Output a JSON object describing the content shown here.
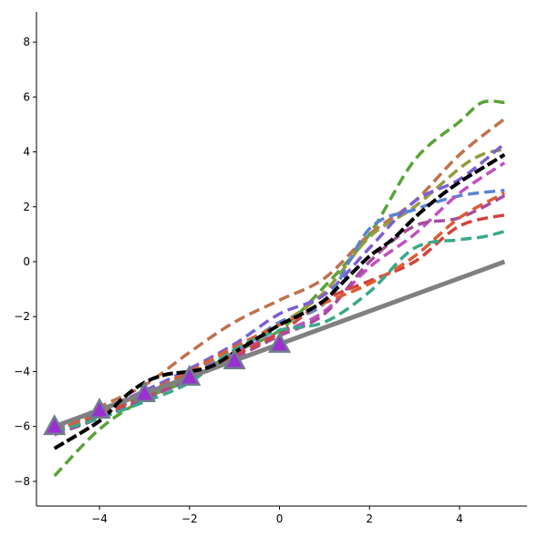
{
  "chart_data": {
    "type": "line",
    "title": "",
    "xlabel": "",
    "ylabel": "",
    "xlim": [
      -5.4,
      5.5
    ],
    "ylim": [
      -8.9,
      9.1
    ],
    "grid": false,
    "legend": "none",
    "x_ticks": [
      {
        "value": -4,
        "label": "−4"
      },
      {
        "value": -2,
        "label": "−2"
      },
      {
        "value": 0,
        "label": "0"
      },
      {
        "value": 2,
        "label": "2"
      },
      {
        "value": 4,
        "label": "4"
      }
    ],
    "y_ticks": [
      {
        "value": -8,
        "label": "−8"
      },
      {
        "value": -6,
        "label": "−6"
      },
      {
        "value": -4,
        "label": "−4"
      },
      {
        "value": -2,
        "label": "−2"
      },
      {
        "value": 0,
        "label": "0"
      },
      {
        "value": 2,
        "label": "2"
      },
      {
        "value": 4,
        "label": "4"
      },
      {
        "value": 6,
        "label": "6"
      },
      {
        "value": 8,
        "label": "8"
      }
    ],
    "reference_line": {
      "color": "#808080",
      "x": [
        -5,
        5
      ],
      "y": [
        -6,
        0
      ]
    },
    "observations": {
      "color": "#9b30d0",
      "edge_color": "#6e7f8c",
      "marker": "triangle",
      "x": [
        -5,
        -4,
        -3,
        -2,
        -1,
        0
      ],
      "y": [
        -6.0,
        -5.4,
        -4.8,
        -4.2,
        -3.6,
        -3.0
      ]
    },
    "series": [
      {
        "color": "#5aa33b",
        "x": [
          -5,
          -4,
          -3,
          -2,
          -1,
          0,
          1,
          2,
          3,
          4,
          4.5,
          5
        ],
        "y": [
          -7.8,
          -6.1,
          -5.0,
          -4.3,
          -3.3,
          -2.5,
          -0.9,
          1.0,
          3.7,
          5.1,
          5.8,
          5.8
        ]
      },
      {
        "color": "#c0714f",
        "x": [
          -5,
          -4,
          -3,
          -2,
          -1,
          0,
          1,
          2,
          3,
          4,
          5
        ],
        "y": [
          -6.3,
          -5.3,
          -4.5,
          -3.3,
          -2.2,
          -1.4,
          -0.6,
          1.0,
          2.2,
          3.9,
          5.2
        ]
      },
      {
        "color": "#949c3c",
        "x": [
          -5,
          -4,
          -3,
          -2,
          -1,
          0,
          1,
          2,
          3,
          4,
          4.5,
          5
        ],
        "y": [
          -6.2,
          -5.5,
          -4.8,
          -4.0,
          -3.2,
          -2.3,
          -1.1,
          0.9,
          2.0,
          3.4,
          3.9,
          4.1
        ]
      },
      {
        "color": "#7b5fd5",
        "x": [
          -5,
          -4,
          -3,
          -2,
          -1,
          0,
          1,
          2,
          3,
          4,
          5
        ],
        "y": [
          -6.1,
          -5.4,
          -4.7,
          -3.9,
          -3.0,
          -1.9,
          -1.2,
          0.5,
          2.2,
          3.0,
          4.3
        ]
      },
      {
        "color": "#000000",
        "x": [
          -5,
          -4,
          -3.5,
          -3,
          -2.5,
          -2,
          -1.5,
          -1,
          -0.5,
          0,
          0.5,
          1,
          1.5,
          2,
          2.5,
          3,
          3.5,
          4,
          4.5,
          5
        ],
        "y": [
          -6.8,
          -5.8,
          -5.0,
          -4.4,
          -4.1,
          -4.0,
          -3.8,
          -3.3,
          -2.8,
          -2.3,
          -1.9,
          -1.4,
          -0.6,
          0.2,
          0.8,
          1.6,
          2.3,
          2.9,
          3.4,
          3.9
        ]
      },
      {
        "color": "#5b84d0",
        "x": [
          -5,
          -4,
          -3,
          -2,
          -1,
          0,
          1,
          2,
          3,
          4,
          5
        ],
        "y": [
          -6.1,
          -5.5,
          -4.9,
          -4.1,
          -3.3,
          -2.2,
          -1.5,
          1.2,
          1.9,
          2.4,
          2.6
        ]
      },
      {
        "color": "#c24fc0",
        "x": [
          -5,
          -4,
          -3,
          -2,
          -1,
          0,
          1,
          2,
          3,
          4,
          5
        ],
        "y": [
          -6.2,
          -5.6,
          -4.9,
          -4.2,
          -3.3,
          -2.6,
          -1.8,
          -0.2,
          1.0,
          2.5,
          3.6
        ]
      },
      {
        "color": "#a64ca0",
        "x": [
          -5,
          -4,
          -3,
          -2,
          -1,
          0,
          1,
          2,
          3,
          4,
          5
        ],
        "y": [
          -6.3,
          -5.7,
          -5.0,
          -4.3,
          -3.5,
          -2.7,
          -1.9,
          0.0,
          1.3,
          1.6,
          2.4
        ]
      },
      {
        "color": "#d0433d",
        "x": [
          -5,
          -4,
          -3,
          -2,
          -1,
          0,
          1,
          2,
          3,
          4,
          5
        ],
        "y": [
          -6.2,
          -5.6,
          -4.9,
          -4.2,
          -3.4,
          -2.6,
          -1.4,
          -0.7,
          0.0,
          1.3,
          1.7
        ]
      },
      {
        "color": "#db5c33",
        "x": [
          -5,
          -4,
          -3,
          -2,
          -1,
          0,
          1,
          2,
          3,
          4,
          5
        ],
        "y": [
          -6.2,
          -5.5,
          -4.8,
          -4.0,
          -3.1,
          -2.3,
          -1.5,
          -0.8,
          0.2,
          1.6,
          2.5
        ]
      },
      {
        "color": "#3aa88a",
        "x": [
          -5,
          -4,
          -3,
          -2,
          -1,
          0,
          1,
          2,
          3,
          4,
          4.5,
          5
        ],
        "y": [
          -6.2,
          -5.7,
          -5.1,
          -4.4,
          -3.2,
          -2.5,
          -2.2,
          -1.1,
          0.5,
          0.8,
          0.9,
          1.1
        ]
      }
    ]
  }
}
